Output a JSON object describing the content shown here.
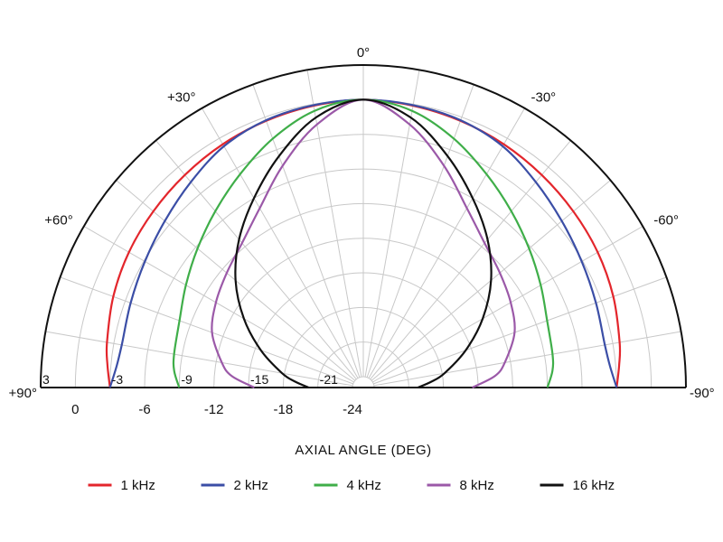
{
  "chart_data": {
    "type": "polar",
    "xlabel": "AXIAL ANGLE (DEG)",
    "angle_labels": [
      {
        "angle": 0,
        "text": "0°"
      },
      {
        "angle": 30,
        "text": "+30°"
      },
      {
        "angle": -30,
        "text": "-30°"
      },
      {
        "angle": 60,
        "text": "+60°"
      },
      {
        "angle": -60,
        "text": "-60°"
      },
      {
        "angle": 90,
        "text": "+90°"
      },
      {
        "angle": -90,
        "text": "-90°"
      }
    ],
    "radial_ticks_inside": [
      {
        "db": 3,
        "text": "3"
      },
      {
        "db": -3,
        "text": "-3"
      },
      {
        "db": -9,
        "text": "-9"
      },
      {
        "db": -15,
        "text": "-15"
      },
      {
        "db": -21,
        "text": "-21"
      }
    ],
    "radial_ticks_outside": [
      {
        "db": 0,
        "text": "0"
      },
      {
        "db": -6,
        "text": "-6"
      },
      {
        "db": -12,
        "text": "-12"
      },
      {
        "db": -18,
        "text": "-18"
      },
      {
        "db": -24,
        "text": "-24"
      }
    ],
    "rlim": [
      -24,
      3
    ],
    "ring_step_db": 3,
    "spoke_step_deg": 10,
    "grid": true,
    "legend_position": "bottom",
    "series": [
      {
        "name": "1 kHz",
        "color": "#e3262c",
        "angles": [
          0,
          10,
          20,
          30,
          40,
          50,
          60,
          70,
          80,
          85,
          90
        ],
        "db": [
          0,
          -0.15,
          -0.35,
          -0.6,
          -0.9,
          -1.2,
          -1.5,
          -1.9,
          -2.4,
          -2.7,
          -3.0
        ]
      },
      {
        "name": "2 kHz",
        "color": "#3b4ea6",
        "angles": [
          0,
          10,
          20,
          30,
          40,
          50,
          60,
          70,
          80,
          85,
          90
        ],
        "db": [
          0,
          -0.1,
          -0.3,
          -0.8,
          -1.7,
          -2.5,
          -3.1,
          -3.5,
          -3.7,
          -3.5,
          -3.0
        ]
      },
      {
        "name": "4 kHz",
        "color": "#3fae49",
        "angles": [
          0,
          10,
          20,
          30,
          40,
          50,
          60,
          70,
          80,
          85,
          90
        ],
        "db": [
          0,
          -0.6,
          -2.0,
          -3.6,
          -5.0,
          -6.2,
          -7.2,
          -8.0,
          -8.3,
          -8.5,
          -9.0
        ]
      },
      {
        "name": "8 kHz",
        "color": "#9b59a8",
        "angles": [
          0,
          10,
          20,
          30,
          40,
          50,
          60,
          70,
          80,
          85,
          90
        ],
        "db": [
          0,
          -1.8,
          -4.5,
          -7.0,
          -8.6,
          -9.5,
          -10.2,
          -11.0,
          -12.5,
          -13.5,
          -15.5
        ]
      },
      {
        "name": "16 kHz",
        "color": "#111111",
        "angles": [
          0,
          10,
          20,
          30,
          40,
          50,
          60,
          70,
          80,
          85,
          90
        ],
        "db": [
          0,
          -1.2,
          -3.6,
          -6.0,
          -8.2,
          -10.5,
          -13.0,
          -15.5,
          -17.8,
          -19.0,
          -20.2
        ]
      }
    ]
  }
}
